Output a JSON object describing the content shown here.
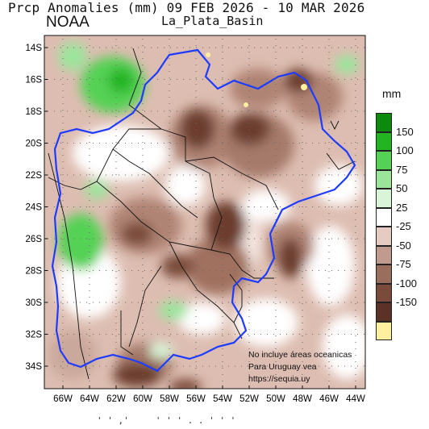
{
  "title": "Prcp Anomalies (mm) 09 FEB 2026 - 10 MAR 2026",
  "subtitle": "La_Plata_Basin",
  "agency": "NOAA",
  "unit": "mm",
  "note_lines": [
    "No incluye áreas oceanicas",
    "Para Uruguay vea",
    "https://sequia.uy"
  ],
  "footer_text": "' ' ,'     ' ' ' . . ' ' '",
  "lat_labels": [
    "14S",
    "16S",
    "18S",
    "20S",
    "22S",
    "24S",
    "26S",
    "28S",
    "30S",
    "32S",
    "34S"
  ],
  "lon_labels": [
    "66W",
    "64W",
    "62W",
    "60W",
    "58W",
    "56W",
    "54W",
    "52W",
    "50W",
    "48W",
    "46W",
    "44W"
  ],
  "legend": [
    {
      "label": "150",
      "color": "#0c8a0c"
    },
    {
      "label": "100",
      "color": "#22b522"
    },
    {
      "label": "75",
      "color": "#55d155"
    },
    {
      "label": "50",
      "color": "#9be59b"
    },
    {
      "label": "25",
      "color": "#d8f5d8"
    },
    {
      "label": "-25",
      "color": "#ffffff"
    },
    {
      "label": "-50",
      "color": "#e6cbc2"
    },
    {
      "label": "-75",
      "color": "#c09a8c"
    },
    {
      "label": "-100",
      "color": "#9a6e5d"
    },
    {
      "label": "-150",
      "color": "#7a4b3a"
    },
    {
      "label": "",
      "color": "#5a3226"
    },
    {
      "label": "",
      "color": "#fff0a0"
    }
  ],
  "colors": {
    "basin_outline": "#1e3cff",
    "borders": "#111111",
    "grid": "#666666"
  }
}
